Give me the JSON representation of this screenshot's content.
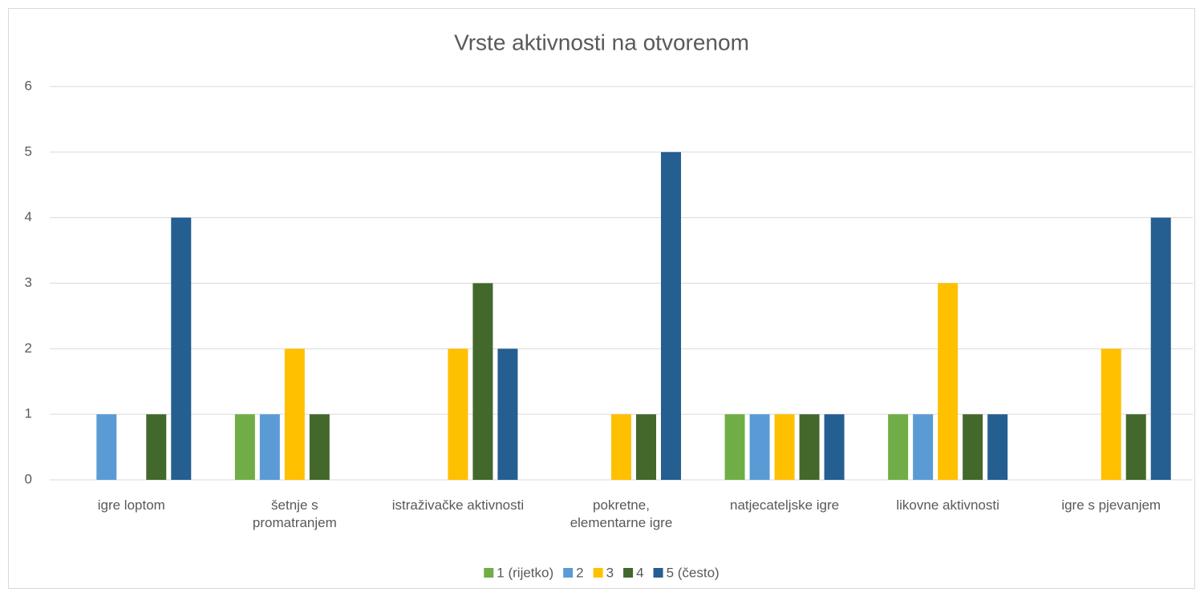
{
  "chart_data": {
    "type": "bar",
    "title": "Vrste aktivnosti na otvorenom",
    "categories": [
      "igre loptom",
      "šetnje s promatranjem",
      "istraživačke aktivnosti",
      "pokretne, elementarne igre",
      "natjecateljske igre",
      "likovne aktivnosti",
      "igre s pjevanjem"
    ],
    "series": [
      {
        "name": "1 (rijetko)",
        "color": "#70ad47",
        "values": [
          0,
          1,
          0,
          0,
          1,
          1,
          0
        ]
      },
      {
        "name": "2",
        "color": "#5b9bd5",
        "values": [
          1,
          1,
          0,
          0,
          1,
          1,
          0
        ]
      },
      {
        "name": "3",
        "color": "#ffc000",
        "values": [
          0,
          2,
          2,
          1,
          1,
          3,
          2
        ]
      },
      {
        "name": "4",
        "color": "#43682b",
        "values": [
          1,
          1,
          3,
          1,
          1,
          1,
          1
        ]
      },
      {
        "name": "5 (često)",
        "color": "#255e91",
        "values": [
          4,
          0,
          2,
          5,
          1,
          1,
          4
        ]
      }
    ],
    "ylim": [
      0,
      6
    ],
    "yticks": [
      0,
      1,
      2,
      3,
      4,
      5,
      6
    ],
    "grid": true,
    "legend": "bottom"
  }
}
